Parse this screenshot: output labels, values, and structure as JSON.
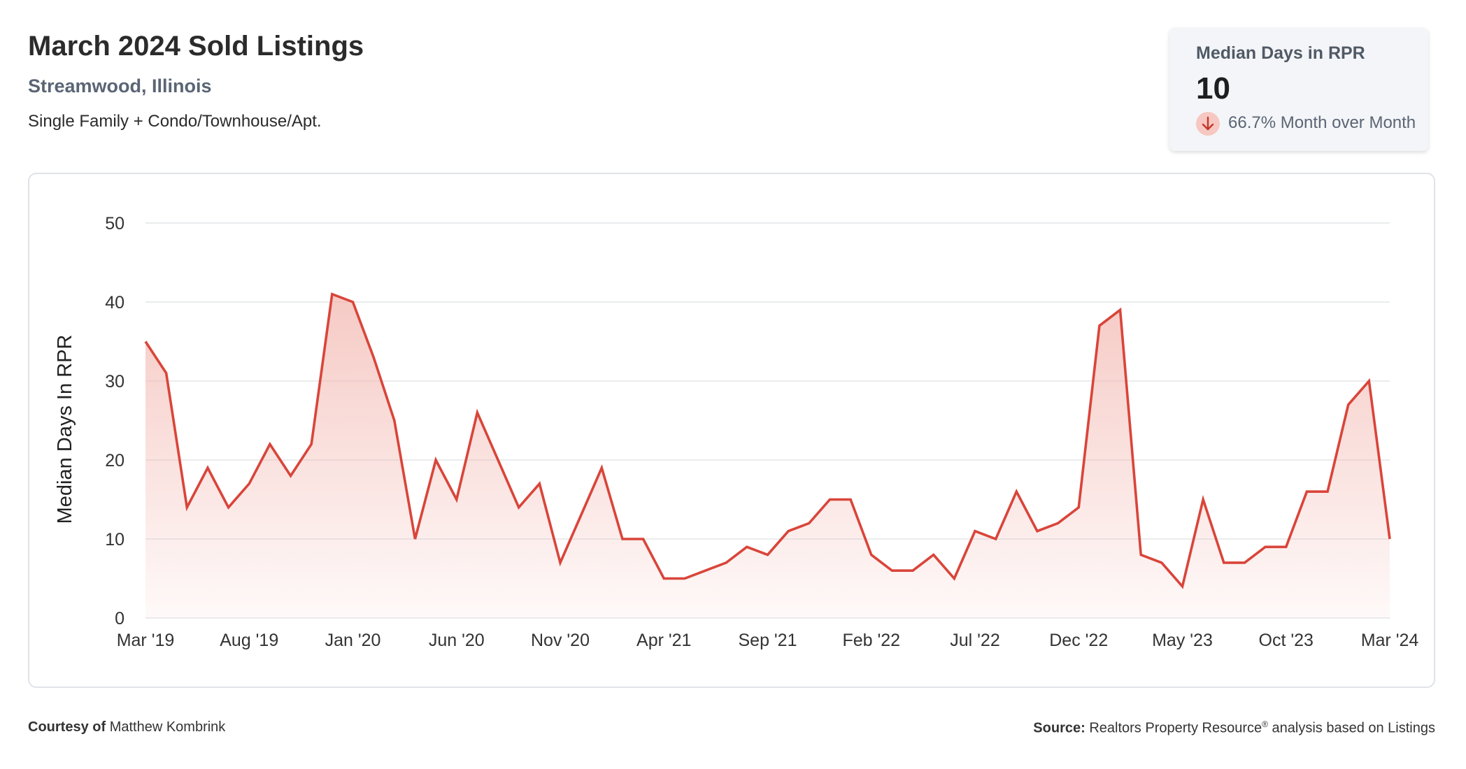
{
  "header": {
    "title": "March 2024 Sold Listings",
    "location": "Streamwood, Illinois",
    "property_types": "Single Family + Condo/Townhouse/Apt."
  },
  "stat_card": {
    "label": "Median Days in RPR",
    "value": "10",
    "change_text": "66.7% Month over Month",
    "change_direction": "down",
    "change_icon": "arrow-down-icon"
  },
  "footer": {
    "courtesy_label": "Courtesy of",
    "courtesy_name": "Matthew Kombrink",
    "source_label": "Source:",
    "source_text_a": "Realtors Property Resource",
    "source_mark": "®",
    "source_text_b": " analysis based on Listings"
  },
  "colors": {
    "line": "#d9453a",
    "fill": "#f3b8b1",
    "grid": "#e2e5e9",
    "tick_text": "#333333"
  },
  "chart_data": {
    "type": "area",
    "ylabel": "Median Days In RPR",
    "ylim": [
      0,
      50
    ],
    "yticks": [
      0,
      10,
      20,
      30,
      40,
      50
    ],
    "grid": true,
    "xtick_labels": [
      "Mar '19",
      "Aug '19",
      "Jan '20",
      "Jun '20",
      "Nov '20",
      "Apr '21",
      "Sep '21",
      "Feb '22",
      "Jul '22",
      "Dec '22",
      "May '23",
      "Oct '23",
      "Mar '24"
    ],
    "xtick_every": 5,
    "series": [
      {
        "values": [
          35,
          31,
          14,
          19,
          14,
          17,
          22,
          18,
          22,
          41,
          40,
          33,
          25,
          10,
          20,
          15,
          26,
          20,
          14,
          17,
          7,
          13,
          19,
          10,
          10,
          5,
          5,
          6,
          7,
          9,
          8,
          11,
          12,
          15,
          15,
          8,
          6,
          6,
          8,
          5,
          11,
          10,
          16,
          11,
          12,
          14,
          37,
          39,
          8,
          7,
          4,
          15,
          7,
          7,
          9,
          9,
          16,
          16,
          27,
          30,
          10
        ]
      }
    ]
  }
}
